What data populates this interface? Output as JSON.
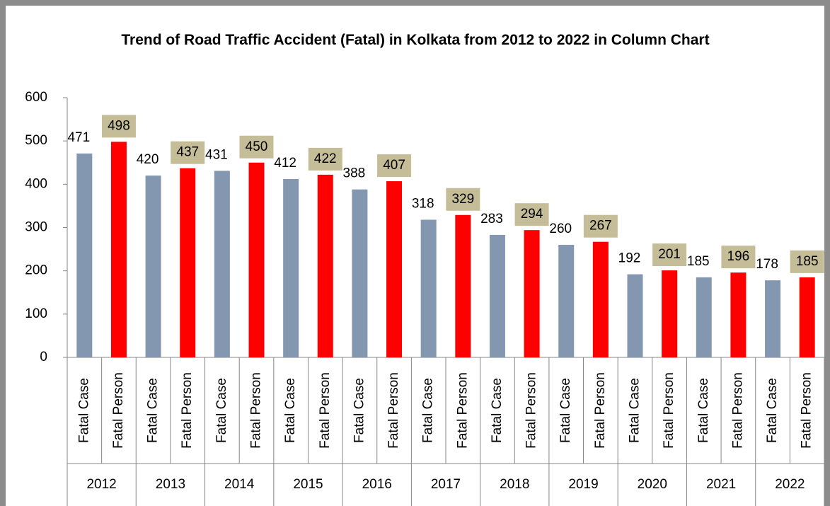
{
  "chart_data": {
    "type": "bar",
    "title": "Trend of Road Traffic Accident (Fatal) in Kolkata from 2012 to 2022 in Column Chart",
    "categories": [
      "2012",
      "2013",
      "2014",
      "2015",
      "2016",
      "2017",
      "2018",
      "2019",
      "2020",
      "2021",
      "2022"
    ],
    "series": [
      {
        "name": "Fatal Case",
        "color": "#8497b0",
        "values": [
          471,
          420,
          431,
          412,
          388,
          318,
          283,
          260,
          192,
          185,
          178
        ]
      },
      {
        "name": "Fatal Person",
        "color": "#ff0000",
        "label_box_color": "#c4bd97",
        "values": [
          498,
          437,
          450,
          422,
          407,
          329,
          294,
          267,
          201,
          196,
          185
        ]
      }
    ],
    "ylim": [
      0,
      600
    ],
    "yticks": [
      0,
      100,
      200,
      300,
      400,
      500,
      600
    ],
    "grid": false
  }
}
